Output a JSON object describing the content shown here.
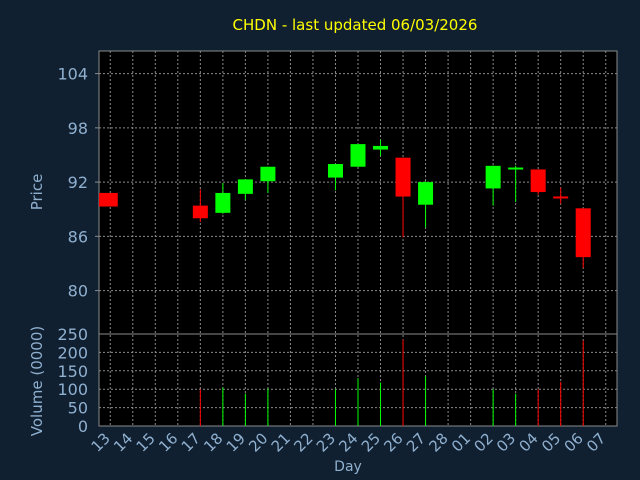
{
  "chart_data": {
    "type": "candlestick",
    "title": "CHDN - last updated 06/03/2026",
    "xlabel": "Day",
    "ylabel_price": "Price",
    "ylabel_volume": "Volume (0000)",
    "price_ticks": [
      80,
      86,
      92,
      98,
      104
    ],
    "volume_ticks": [
      0,
      50,
      100,
      150,
      200,
      250
    ],
    "price_ylim": [
      75.2,
      106.5
    ],
    "volume_ylim": [
      0,
      250
    ],
    "grid": true,
    "up_color": "#00ff00",
    "down_color": "#ff0000",
    "days": [
      "13",
      "14",
      "15",
      "16",
      "17",
      "18",
      "19",
      "20",
      "21",
      "22",
      "23",
      "24",
      "25",
      "26",
      "27",
      "28",
      "01",
      "02",
      "03",
      "04",
      "05",
      "06",
      "07"
    ],
    "candles": [
      {
        "day": "13",
        "open": 90.8,
        "close": 89.3,
        "high": 90.8,
        "low": 89.3,
        "volume": 0
      },
      {
        "day": "17",
        "open": 89.4,
        "close": 88.0,
        "high": 91.2,
        "low": 87.6,
        "volume": 100
      },
      {
        "day": "18",
        "open": 88.6,
        "close": 90.8,
        "high": 91.9,
        "low": 88.5,
        "volume": 105
      },
      {
        "day": "19",
        "open": 90.7,
        "close": 92.3,
        "high": 92.3,
        "low": 90.0,
        "volume": 88
      },
      {
        "day": "20",
        "open": 92.1,
        "close": 93.7,
        "high": 93.7,
        "low": 90.8,
        "volume": 102
      },
      {
        "day": "23",
        "open": 92.5,
        "close": 94.0,
        "high": 94.0,
        "low": 91.1,
        "volume": 100
      },
      {
        "day": "24",
        "open": 93.7,
        "close": 96.2,
        "high": 96.2,
        "low": 93.7,
        "volume": 130
      },
      {
        "day": "25",
        "open": 95.6,
        "close": 96.0,
        "high": 96.7,
        "low": 94.9,
        "volume": 118
      },
      {
        "day": "26",
        "open": 94.7,
        "close": 90.4,
        "high": 94.7,
        "low": 85.9,
        "volume": 235
      },
      {
        "day": "27",
        "open": 89.5,
        "close": 92.0,
        "high": 92.1,
        "low": 87.0,
        "volume": 135
      },
      {
        "day": "02",
        "open": 91.3,
        "close": 93.8,
        "high": 93.8,
        "low": 89.4,
        "volume": 100
      },
      {
        "day": "03",
        "open": 93.3,
        "close": 93.5,
        "high": 93.8,
        "low": 89.8,
        "volume": 88
      },
      {
        "day": "04",
        "open": 93.4,
        "close": 90.9,
        "high": 93.4,
        "low": 90.6,
        "volume": 100
      },
      {
        "day": "05",
        "open": 90.3,
        "close": 90.1,
        "high": 91.4,
        "low": 89.6,
        "volume": 120
      },
      {
        "day": "06",
        "open": 89.1,
        "close": 83.7,
        "high": 89.1,
        "low": 82.5,
        "volume": 232
      }
    ]
  }
}
